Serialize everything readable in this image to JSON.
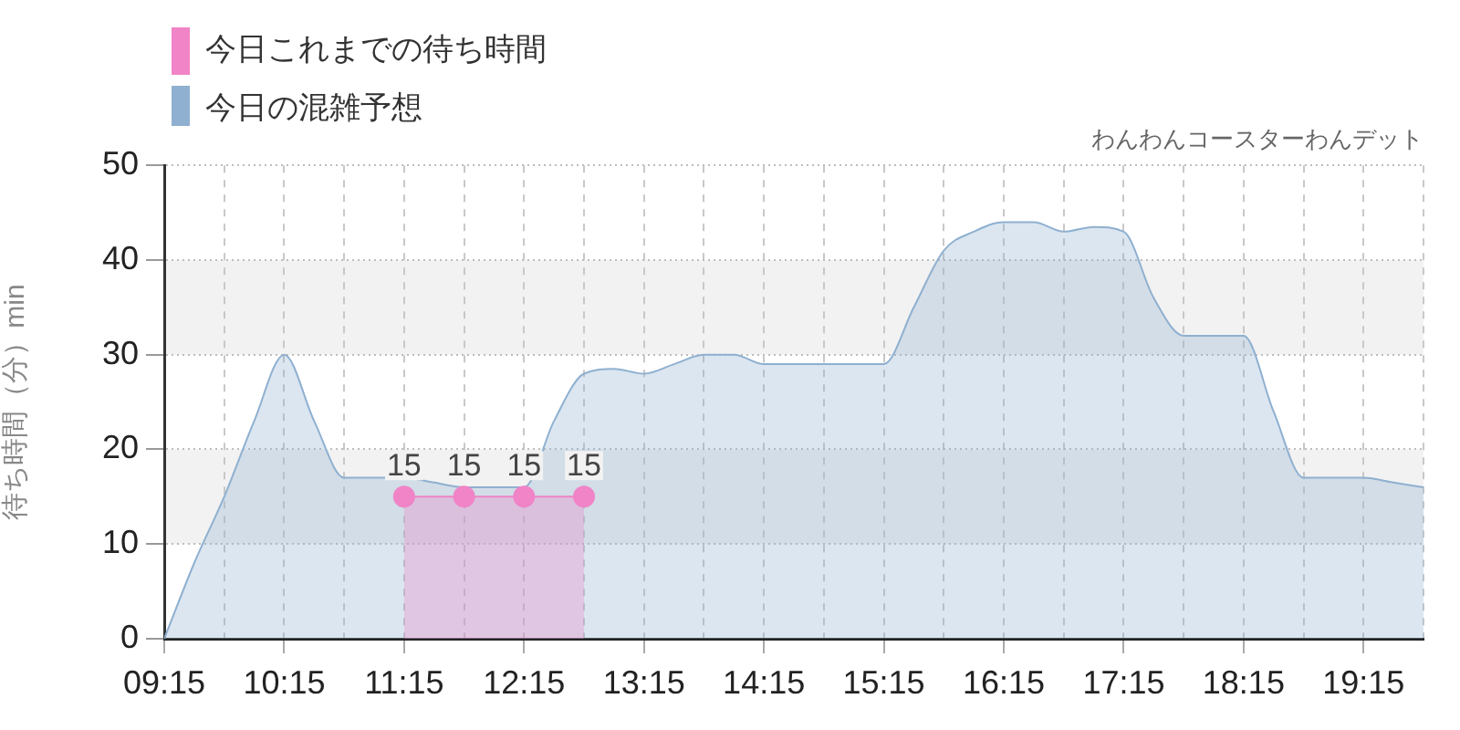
{
  "chart_data": {
    "type": "area",
    "title": "わんわんコースターわんデット",
    "ylabel": "待ち時間（分）min",
    "series": [
      {
        "name": "今日これまでの待ち時間",
        "color": "#f084c6",
        "marker": "circle",
        "x": [
          11.25,
          11.75,
          12.25,
          12.75
        ],
        "values": [
          15,
          15,
          15,
          15
        ],
        "value_labels": [
          "15",
          "15",
          "15",
          "15"
        ]
      },
      {
        "name": "今日の混雑予想",
        "color": "#8fb0d0",
        "marker": "none",
        "x": [
          9.25,
          9.5,
          9.75,
          10,
          10.25,
          10.5,
          10.75,
          11,
          11.25,
          11.5,
          11.75,
          12,
          12.25,
          12.5,
          12.75,
          13,
          13.25,
          13.5,
          13.75,
          14,
          14.25,
          14.5,
          14.75,
          15,
          15.25,
          15.5,
          15.75,
          16,
          16.25,
          16.5,
          16.75,
          17,
          17.25,
          17.5,
          17.75,
          18,
          18.25,
          18.5,
          18.75,
          19,
          19.25,
          19.5,
          19.75
        ],
        "values": [
          0,
          8,
          15,
          23,
          30,
          23,
          17,
          17,
          17,
          16.5,
          16,
          16,
          16,
          23,
          28,
          28.5,
          28,
          29,
          30,
          30,
          29,
          29,
          29,
          29,
          29,
          35,
          41,
          43,
          44,
          44,
          43,
          43.5,
          43,
          36,
          32,
          32,
          32,
          24,
          17,
          17,
          17,
          16.5,
          16
        ]
      }
    ],
    "xlim": [
      9.25,
      19.75
    ],
    "xticks": [
      {
        "value": 9.25,
        "label": "09:15"
      },
      {
        "value": 9.75,
        "label": null
      },
      {
        "value": 10.25,
        "label": "10:15"
      },
      {
        "value": 10.75,
        "label": null
      },
      {
        "value": 11.25,
        "label": "11:15"
      },
      {
        "value": 11.75,
        "label": null
      },
      {
        "value": 12.25,
        "label": "12:15"
      },
      {
        "value": 12.75,
        "label": null
      },
      {
        "value": 13.25,
        "label": "13:15"
      },
      {
        "value": 13.75,
        "label": null
      },
      {
        "value": 14.25,
        "label": "14:15"
      },
      {
        "value": 14.75,
        "label": null
      },
      {
        "value": 15.25,
        "label": "15:15"
      },
      {
        "value": 15.75,
        "label": null
      },
      {
        "value": 16.25,
        "label": "16:15"
      },
      {
        "value": 16.75,
        "label": null
      },
      {
        "value": 17.25,
        "label": "17:15"
      },
      {
        "value": 17.75,
        "label": null
      },
      {
        "value": 18.25,
        "label": "18:15"
      },
      {
        "value": 18.75,
        "label": null
      },
      {
        "value": 19.25,
        "label": "19:15"
      },
      {
        "value": 19.75,
        "label": null
      }
    ],
    "ylim": [
      0,
      50
    ],
    "yticks": [
      0,
      10,
      20,
      30,
      40,
      50
    ],
    "bands": [
      {
        "axis": "y",
        "from": 10,
        "to": 20,
        "color": "#f2f2f2"
      },
      {
        "axis": "y",
        "from": 30,
        "to": 40,
        "color": "#f2f2f2"
      }
    ],
    "grid": true,
    "legend": "top left"
  }
}
